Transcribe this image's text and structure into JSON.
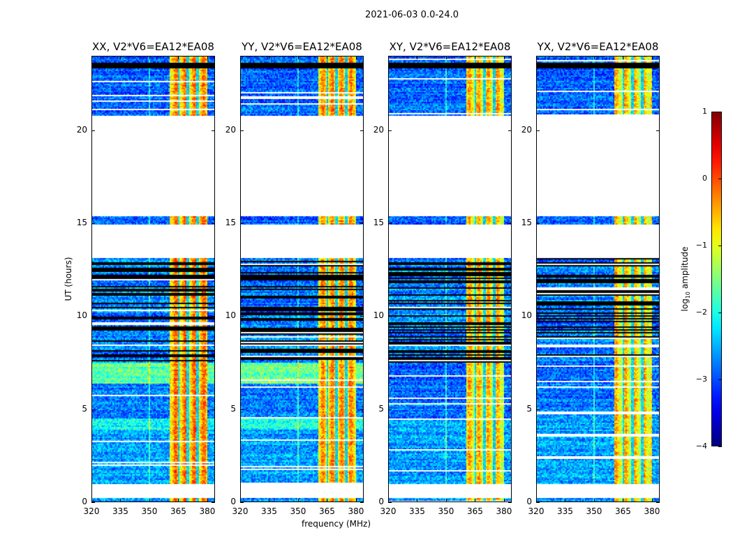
{
  "chart_data": {
    "type": "heatmap",
    "title": "2021-06-03 0.0-24.0",
    "xlabel": "frequency (MHz)",
    "ylabel": "UT (hours)",
    "xlim": [
      320,
      384
    ],
    "ylim": [
      0,
      24
    ],
    "xticks": [
      "320",
      "335",
      "350",
      "365",
      "380"
    ],
    "xtick_values": [
      320,
      335,
      350,
      365,
      380
    ],
    "yticks": [
      "0",
      "5",
      "10",
      "15",
      "20"
    ],
    "ytick_values": [
      0,
      5,
      10,
      15,
      20
    ],
    "colorbar": {
      "label_main": "log",
      "label_sub": "10",
      "label_rest": " amplitude",
      "range": [
        -4,
        1
      ],
      "colormap": "jet",
      "ticks": [
        "1",
        "0",
        "−1",
        "−2",
        "−3",
        "−4"
      ],
      "tick_values": [
        1,
        0,
        -1,
        -2,
        -3,
        -4
      ]
    },
    "panels": [
      {
        "title": "XX, V2*V6=EA12*EA08",
        "seed": 11,
        "bright_bg": [
          -2.1,
          -1.7
        ],
        "band_level": -0.5
      },
      {
        "title": "YY, V2*V6=EA12*EA08",
        "seed": 23,
        "bright_bg": [
          -2.0,
          -1.6
        ],
        "band_level": -0.6
      },
      {
        "title": "XY, V2*V6=EA12*EA08",
        "seed": 37,
        "bright_bg": [
          -2.5,
          -2.9
        ],
        "band_level": -0.8
      },
      {
        "title": "YX, V2*V6=EA12*EA08",
        "seed": 41,
        "bright_bg": [
          -2.6,
          -2.9
        ],
        "band_level": -0.8
      }
    ],
    "time_segments": [
      {
        "start": 0.0,
        "end": 0.22,
        "type": "data",
        "bg": -2.7
      },
      {
        "start": 0.22,
        "end": 1.0,
        "type": "gap"
      },
      {
        "start": 1.0,
        "end": 3.9,
        "type": "data",
        "bg": -2.6
      },
      {
        "start": 3.9,
        "end": 4.5,
        "type": "bright1"
      },
      {
        "start": 4.5,
        "end": 6.4,
        "type": "data",
        "bg": -2.8
      },
      {
        "start": 6.4,
        "end": 7.5,
        "type": "bright2"
      },
      {
        "start": 7.5,
        "end": 13.1,
        "type": "flagged",
        "bg": -3.0
      },
      {
        "start": 13.1,
        "end": 14.9,
        "type": "gap"
      },
      {
        "start": 14.9,
        "end": 15.4,
        "type": "data",
        "bg": -2.9
      },
      {
        "start": 15.4,
        "end": 20.8,
        "type": "gap"
      },
      {
        "start": 20.8,
        "end": 23.3,
        "type": "data",
        "bg": -2.9
      },
      {
        "start": 23.3,
        "end": 23.65,
        "type": "black"
      },
      {
        "start": 23.65,
        "end": 24.0,
        "type": "data",
        "bg": -2.9
      }
    ],
    "rfi_band": {
      "range": [
        360.5,
        380
      ],
      "dividers": [
        365,
        370,
        375
      ]
    }
  }
}
